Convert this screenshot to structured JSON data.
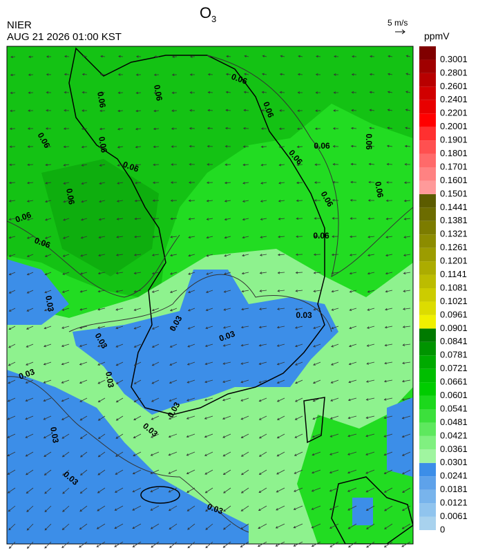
{
  "header": {
    "title": {
      "text": "O",
      "subscript": "3"
    },
    "agency": "NIER",
    "datetime": "AUG 21 2026 01:00 KST",
    "wind_scale": "5 m/s"
  },
  "legend": {
    "unit": "ppmV",
    "levels": [
      0,
      0.0061,
      0.0121,
      0.0181,
      0.0241,
      0.0301,
      0.0361,
      0.0421,
      0.0481,
      0.0541,
      0.0601,
      0.0661,
      0.0721,
      0.0781,
      0.0841,
      0.0901,
      0.0961,
      0.1021,
      0.1081,
      0.1141,
      0.1201,
      0.1261,
      0.1321,
      0.1381,
      0.1441,
      0.1501,
      0.1601,
      0.1701,
      0.1801,
      0.1901,
      0.2001,
      0.2201,
      0.2401,
      0.2601,
      0.2801,
      0.3001
    ],
    "colors": [
      "#a8d2ee",
      "#90c4ee",
      "#78b4ec",
      "#5ea2ea",
      "#3c8ee8",
      "#a0f5a0",
      "#80f080",
      "#5ee85e",
      "#3ce03c",
      "#1cd81c",
      "#00cc00",
      "#00be00",
      "#00aa00",
      "#009400",
      "#007a00",
      "#f0f000",
      "#dcdc00",
      "#cccc00",
      "#bcbc00",
      "#acac00",
      "#9c9c00",
      "#8c8c00",
      "#7c7c00",
      "#6c6c00",
      "#5c5c00",
      "#ff9a9a",
      "#ff8282",
      "#ff6a6a",
      "#ff5050",
      "#ff3030",
      "#ff0000",
      "#e80000",
      "#d00000",
      "#b80000",
      "#a00000",
      "#800000"
    ]
  },
  "map": {
    "contour_labels": [
      "0.06",
      "0.06",
      "0.06",
      "0.06",
      "0.06",
      "0.06",
      "0.06",
      "0.06",
      "0.06",
      "0.06",
      "0.06",
      "0.06",
      "0.06",
      "0.06",
      "0.06",
      "0.06",
      "0.03",
      "0.03",
      "0.03",
      "0.03",
      "0.03",
      "0.03",
      "0.03",
      "0.03",
      "0.03",
      "0.03",
      "0.03",
      "0.03"
    ]
  }
}
